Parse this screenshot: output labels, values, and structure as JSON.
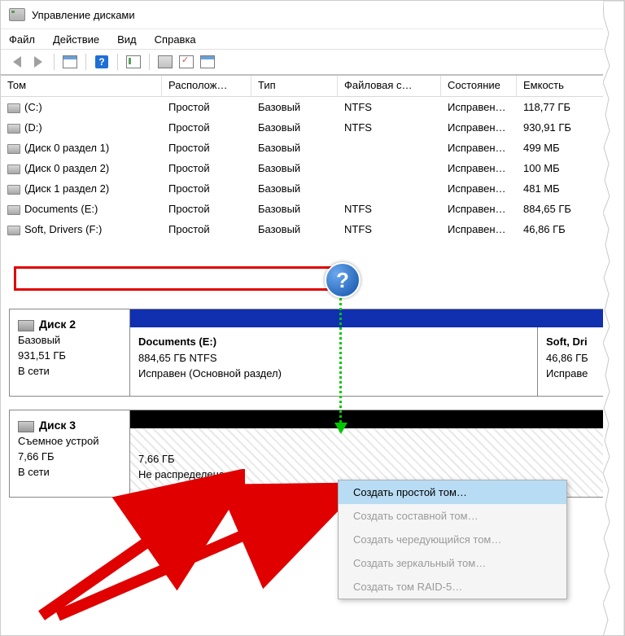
{
  "title": "Управление дисками",
  "menu": {
    "file": "Файл",
    "action": "Действие",
    "view": "Вид",
    "help": "Справка"
  },
  "columns": {
    "vol": "Том",
    "layout": "Располож…",
    "type": "Тип",
    "fs": "Файловая с…",
    "status": "Состояние",
    "cap": "Емкость"
  },
  "rows": [
    {
      "name": "(C:)",
      "layout": "Простой",
      "type": "Базовый",
      "fs": "NTFS",
      "status": "Исправен…",
      "cap": "118,77 ГБ"
    },
    {
      "name": "(D:)",
      "layout": "Простой",
      "type": "Базовый",
      "fs": "NTFS",
      "status": "Исправен…",
      "cap": "930,91 ГБ"
    },
    {
      "name": "(Диск 0 раздел 1)",
      "layout": "Простой",
      "type": "Базовый",
      "fs": "",
      "status": "Исправен…",
      "cap": "499 МБ"
    },
    {
      "name": "(Диск 0 раздел 2)",
      "layout": "Простой",
      "type": "Базовый",
      "fs": "",
      "status": "Исправен…",
      "cap": "100 МБ"
    },
    {
      "name": "(Диск 1 раздел 2)",
      "layout": "Простой",
      "type": "Базовый",
      "fs": "",
      "status": "Исправен…",
      "cap": "481 МБ"
    },
    {
      "name": "Documents (E:)",
      "layout": "Простой",
      "type": "Базовый",
      "fs": "NTFS",
      "status": "Исправен…",
      "cap": "884,65 ГБ"
    },
    {
      "name": "Soft, Drivers (F:)",
      "layout": "Простой",
      "type": "Базовый",
      "fs": "NTFS",
      "status": "Исправен…",
      "cap": "46,86 ГБ"
    }
  ],
  "disk2": {
    "title": "Диск 2",
    "type": "Базовый",
    "size": "931,51 ГБ",
    "status": "В сети",
    "p1_name": "Documents  (E:)",
    "p1_line2": "884,65 ГБ NTFS",
    "p1_line3": "Исправен (Основной раздел)",
    "p2_name": "Soft, Dri",
    "p2_line2": "46,86 ГБ",
    "p2_line3": "Исправе"
  },
  "disk3": {
    "title": "Диск 3",
    "type": "Съемное устрой",
    "size": "7,66 ГБ",
    "status": "В сети",
    "p1_line1": "7,66 ГБ",
    "p1_line2": "Не распределена"
  },
  "ctx": {
    "i1": "Создать простой том…",
    "i2": "Создать составной том…",
    "i3": "Создать чередующийся том…",
    "i4": "Создать зеркальный том…",
    "i5": "Создать том RAID-5…"
  },
  "q": "?",
  "colors": {
    "red": "#e00000",
    "blue_bar": "#1030b0",
    "black_bar": "#000000",
    "ctx_hl": "#b8dcf4",
    "green": "#00c800",
    "q_grad_a": "#6aa8ee",
    "q_grad_b": "#1050a8"
  }
}
